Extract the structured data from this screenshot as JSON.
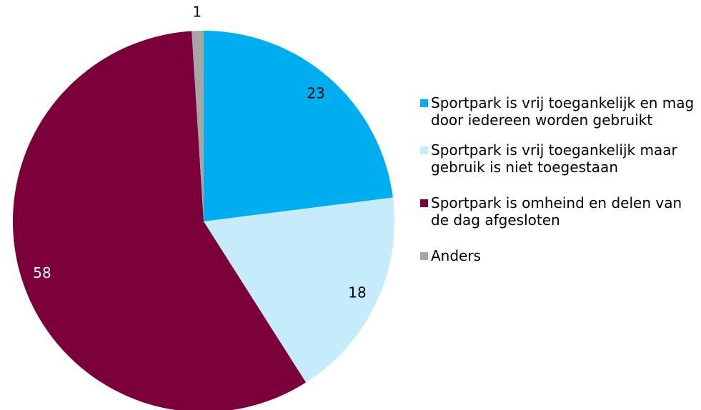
{
  "chart_data": {
    "type": "pie",
    "categories": [
      "Sportpark is vrij toegankelijk en mag door iedereen worden gebruikt",
      "Sportpark is vrij toegankelijk maar gebruik is niet toegestaan",
      "Sportpark is omheind en delen van de dag afgesloten",
      "Anders"
    ],
    "values": [
      23,
      18,
      58,
      1
    ],
    "colors": [
      "#00adef",
      "#c6ecfb",
      "#7b0039",
      "#a6a6a6"
    ],
    "legend": "right"
  }
}
